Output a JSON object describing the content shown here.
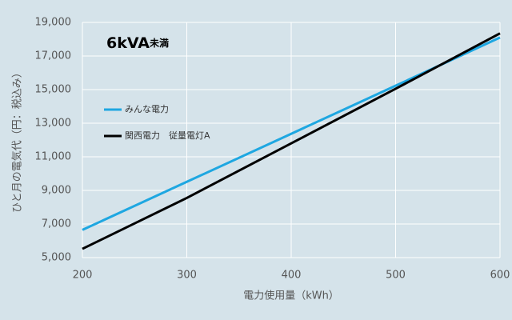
{
  "chart_data": {
    "type": "line",
    "title": "6kVA",
    "title_note": "未満",
    "x_label": "電力使用量（kWh）",
    "y_label": "ひと月の電気代（円：税込み）",
    "x": [
      200,
      300,
      400,
      500,
      600
    ],
    "series": [
      {
        "name": "みんな電力",
        "color": "#1ea7e1",
        "values": [
          6650,
          9510,
          12370,
          15230,
          18100
        ]
      },
      {
        "name": "関西電力　従量電灯A",
        "color": "#000000",
        "values": [
          5520,
          8550,
          11800,
          15050,
          18350
        ]
      }
    ],
    "xlim": [
      200,
      600
    ],
    "xticks": [
      200,
      300,
      400,
      500,
      600
    ],
    "ylim": [
      5000,
      19000
    ],
    "yticks": [
      {
        "value": 5000,
        "label": "5,000"
      },
      {
        "value": 7000,
        "label": "7,000"
      },
      {
        "value": 9000,
        "label": "9,000"
      },
      {
        "value": 11000,
        "label": "11,000"
      },
      {
        "value": 13000,
        "label": "13,000"
      },
      {
        "value": 15000,
        "label": "15,000"
      },
      {
        "value": 17000,
        "label": "17,000"
      },
      {
        "value": 19000,
        "label": "19,000"
      }
    ],
    "grid": true,
    "legend": "upper left"
  }
}
